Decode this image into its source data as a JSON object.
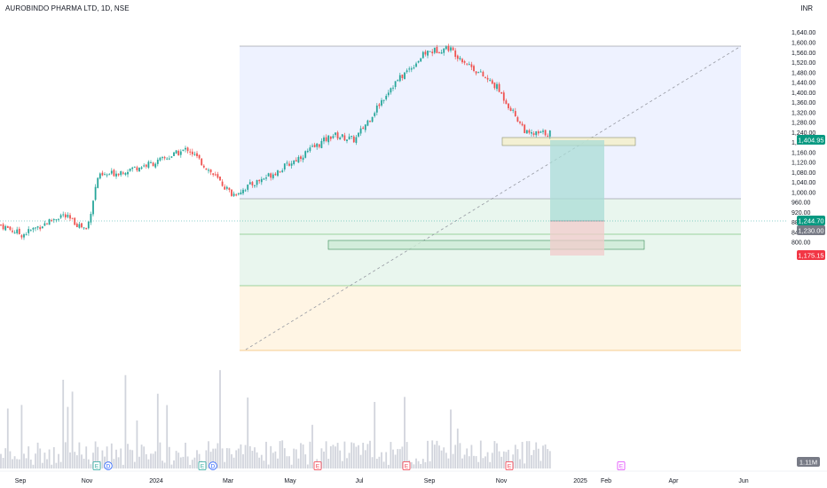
{
  "header": {
    "symbol_title": "AUROBINDO PHARMA LTD, 1D, NSE",
    "currency": "INR"
  },
  "price_labels": {
    "target": "1,404.95",
    "entry": "1,244.70",
    "last": "1,230.00",
    "stop": "1,175.15",
    "volume": "1.11M"
  },
  "colors": {
    "up": "#26a69a",
    "down": "#ef5350",
    "volume": "#d1d4dc",
    "fib_blue": "#eef2ff",
    "fib_green": "#e9f6ee",
    "fib_orange": "#fff5e4",
    "target_zone": "#bfe6e2",
    "stop_zone": "#f6d6d6",
    "label_green": "#089981",
    "label_red": "#f23645",
    "label_gray": "#787b86"
  },
  "events": [
    {
      "month": "Dec",
      "type": "E"
    },
    {
      "month": "Dec",
      "type": "D"
    },
    {
      "month": "Feb",
      "type": "E"
    },
    {
      "month": "Feb",
      "type": "D"
    },
    {
      "month": "May",
      "type": "E"
    },
    {
      "month": "Aug",
      "type": "E"
    },
    {
      "month": "Nov",
      "type": "E"
    },
    {
      "month": "Feb",
      "type": "E"
    }
  ],
  "chart_data": {
    "type": "candlestick",
    "title": "AUROBINDO PHARMA LTD, 1D, NSE",
    "y_unit": "INR",
    "ylim": [
      770,
      1665
    ],
    "y_ticks": [
      "1,640.00",
      "1,600.00",
      "1,560.00",
      "1,520.00",
      "1,480.00",
      "1,440.00",
      "1,400.00",
      "1,360.00",
      "1,320.00",
      "1,280.00",
      "1,240.00",
      "1,200.00",
      "1,160.00",
      "1,120.00",
      "1,080.00",
      "1,040.00",
      "1,000.00",
      "960.00",
      "920.00",
      "880.00",
      "840.00",
      "800.00"
    ],
    "x_ticks": [
      "Sep",
      "Nov",
      "2024",
      "Mar",
      "May",
      "Jul",
      "Sep",
      "Nov",
      "2025",
      "Feb",
      "Apr",
      "Jun"
    ],
    "price_path": [
      {
        "date": "Aug 2023",
        "close": 870
      },
      {
        "date": "Sep 2023",
        "close": 830
      },
      {
        "date": "Oct 2023",
        "close": 910
      },
      {
        "date": "Nov 2023",
        "close": 850
      },
      {
        "date": "Dec 2023",
        "close": 1060
      },
      {
        "date": "Jan 2024",
        "close": 1120
      },
      {
        "date": "Feb 2024",
        "close": 1175
      },
      {
        "date": "Mar 2024",
        "close": 990
      },
      {
        "date": "Apr 2024",
        "close": 1100
      },
      {
        "date": "May 2024",
        "close": 1230
      },
      {
        "date": "Jun 2024",
        "close": 1210
      },
      {
        "date": "Jul 2024",
        "close": 1420
      },
      {
        "date": "Aug 2024",
        "close": 1560
      },
      {
        "date": "Sep 2024",
        "close": 1580
      },
      {
        "date": "Oct 2024",
        "close": 1420
      },
      {
        "date": "Nov 2024",
        "close": 1230
      },
      {
        "date": "Dec 2024",
        "close": 1240
      }
    ],
    "fib_levels": [
      1590,
      1288,
      1215,
      1112,
      985
    ],
    "trend_line": {
      "from": {
        "date": "Mar 2024",
        "price": 985
      },
      "to": {
        "date": "Jun 2025",
        "price": 1590
      }
    },
    "supply_zone": [
      1395,
      1412
    ],
    "demand_zone": [
      1185,
      1202
    ],
    "position": {
      "target": 1404.95,
      "entry": 1244.7,
      "stop": 1175.15
    },
    "last_price": 1230.0,
    "last_volume": "1.11M"
  }
}
